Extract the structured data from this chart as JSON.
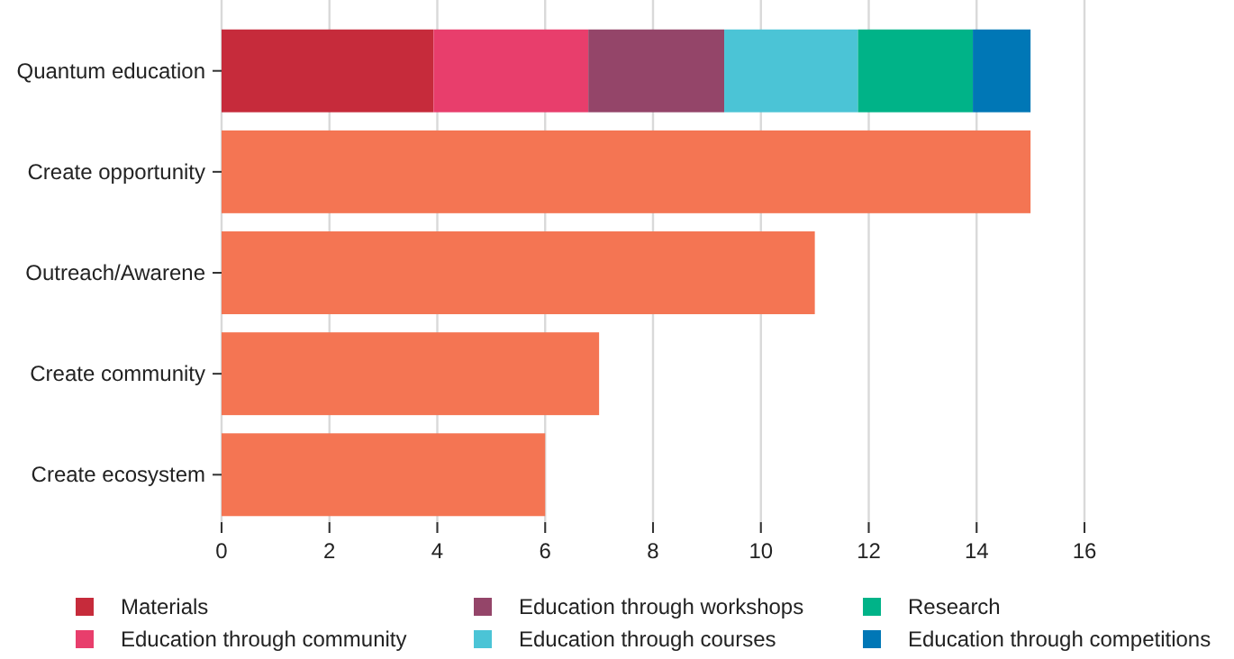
{
  "chart_data": {
    "type": "bar",
    "orientation": "horizontal",
    "stacked": true,
    "categories": [
      "Quantum education",
      "Create opportunity",
      "Outreach/Awarene",
      "Create community",
      "Create ecosystem"
    ],
    "series": [
      {
        "name": "Materials",
        "color": "#c62b3b",
        "values": [
          3.93,
          null,
          null,
          null,
          null
        ]
      },
      {
        "name": "Education through community",
        "color": "#e83e6c",
        "values": [
          2.87,
          null,
          null,
          null,
          null
        ]
      },
      {
        "name": "Education through workshops",
        "color": "#944569",
        "values": [
          2.52,
          null,
          null,
          null,
          null
        ]
      },
      {
        "name": "Education through courses",
        "color": "#4bc4d6",
        "values": [
          2.48,
          null,
          null,
          null,
          null
        ]
      },
      {
        "name": "Research",
        "color": "#00b388",
        "values": [
          2.13,
          null,
          null,
          null,
          null
        ]
      },
      {
        "name": "Education through competitions",
        "color": "#0077b6",
        "values": [
          1.07,
          null,
          null,
          null,
          null
        ]
      },
      {
        "color": "#f47553",
        "values": [
          null,
          15,
          11,
          7,
          6
        ]
      }
    ],
    "xlim": [
      0,
      16
    ],
    "xticks": [
      0,
      2,
      4,
      6,
      8,
      10,
      12,
      14,
      16
    ],
    "grid": "x",
    "legend": "bottom"
  }
}
